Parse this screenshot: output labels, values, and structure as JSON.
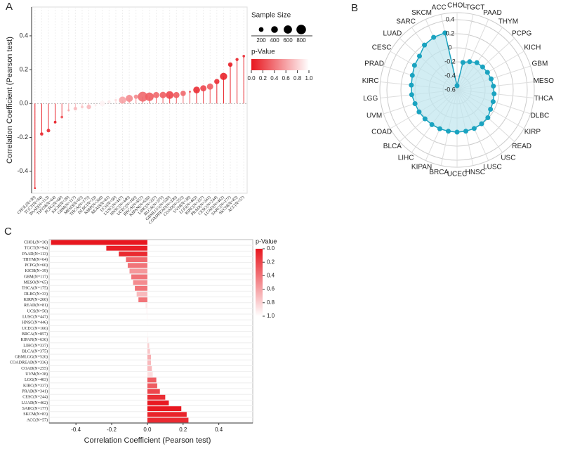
{
  "chart_data": [
    {
      "type": "lollipop",
      "panel": "A",
      "ylabel": "Correlation Coefficient (Pearson test)",
      "categories": [
        "CHOL(N=30)",
        "TGCT(N=94)",
        "PAAD(N=113)",
        "THYM(N=64)",
        "PCPG(N=60)",
        "KICH(N=39)",
        "GBM(N=117)",
        "MESO(N=65)",
        "THCA(N=175)",
        "DLBC(N=33)",
        "KIRP(N=260)",
        "READ(N=81)",
        "UCS(N=50)",
        "LUSC(N=447)",
        "HNSC(N=446)",
        "UCEC(N=166)",
        "BRCA(N=857)",
        "KIPAN(N=636)",
        "LIHC(N=337)",
        "BLCA(N=375)",
        "GBMLGG(N=520)",
        "COADREAD(N=336)",
        "COAD(N=255)",
        "UVM(N=38)",
        "LGG(N=403)",
        "KIRC(N=337)",
        "PRAD(N=341)",
        "CESC(N=244)",
        "LUAD(N=462)",
        "SARC(N=177)",
        "SKCM(N=83)",
        "ACC(N=57)"
      ],
      "values": [
        -0.5,
        -0.18,
        -0.16,
        -0.11,
        -0.08,
        -0.04,
        -0.03,
        -0.02,
        -0.02,
        -0.01,
        0,
        0.01,
        0.02,
        0.02,
        0.03,
        0.04,
        0.04,
        0.04,
        0.05,
        0.05,
        0.05,
        0.05,
        0.06,
        0.07,
        0.08,
        0.09,
        0.1,
        0.13,
        0.16,
        0.23,
        0.26,
        0.28
      ],
      "pvalues": [
        0.01,
        0.05,
        0.1,
        0.02,
        0.25,
        0.6,
        0.7,
        0.75,
        0.7,
        0.9,
        0.95,
        0.9,
        0.85,
        0.6,
        0.5,
        0.5,
        0.35,
        0.3,
        0.35,
        0.3,
        0.2,
        0.3,
        0.35,
        0.25,
        0.1,
        0.2,
        0.3,
        0.1,
        0.05,
        0.02,
        0.05,
        0.1
      ],
      "sizes": [
        30,
        94,
        113,
        64,
        60,
        39,
        117,
        65,
        175,
        33,
        260,
        81,
        50,
        447,
        446,
        166,
        857,
        636,
        337,
        375,
        520,
        336,
        255,
        38,
        403,
        337,
        341,
        244,
        462,
        177,
        83,
        57
      ],
      "ylim": [
        -0.53,
        0.57
      ],
      "yticks": [
        -0.4,
        -0.2,
        {
          "value": 0,
          "label": "0.0"
        },
        0.2,
        0.4
      ],
      "size_title": "Sample Size",
      "size_ticks": [
        200,
        400,
        600,
        800
      ],
      "p_title": "p-Value",
      "plim": [
        0,
        1
      ],
      "pticks": [
        {
          "value": 0,
          "label": "0.0"
        },
        0.2,
        0.4,
        0.6,
        0.8,
        {
          "value": 1,
          "label": "1.0"
        }
      ],
      "colorscale": [
        "#e8171f",
        "#ffffff"
      ]
    },
    {
      "type": "radar",
      "panel": "B",
      "categories": [
        "CHOL",
        "TGCT",
        "PAAD",
        "THYM",
        "PCPG",
        "KICH",
        "GBM",
        "MESO",
        "THCA",
        "DLBC",
        "KIRP",
        "READ",
        "USC",
        "LUSC",
        "HNSC",
        "UCEC",
        "BRCA",
        "KIPAN",
        "LIHC",
        "BLCA",
        "COAD",
        "UVM",
        "LGG",
        "KIRC",
        "PRAD",
        "CESC",
        "LUAD",
        "SARC",
        "SKCM",
        "ACC"
      ],
      "values": [
        -0.54,
        -0.2,
        -0.16,
        -0.12,
        -0.11,
        -0.1,
        -0.09,
        -0.08,
        -0.07,
        -0.06,
        -0.05,
        -0.01,
        -0.005,
        0,
        0,
        0,
        0,
        0.005,
        0.01,
        0.015,
        0.025,
        0.03,
        0.05,
        0.055,
        0.07,
        0.1,
        0.12,
        0.19,
        0.22,
        0.23
      ],
      "rlim": [
        -0.6,
        0.4
      ],
      "rticks": [
        -0.6,
        -0.4,
        -0.2,
        0,
        0.2,
        0.4
      ],
      "color": "#1aa3c0",
      "fill": "#bfe6ee"
    },
    {
      "type": "hbar",
      "panel": "C",
      "xlabel": "Correlation Coefficient (Pearson test)",
      "categories": [
        "CHOL(N=30)",
        "TGCT(N=94)",
        "PAAD(N=113)",
        "THYM(N=64)",
        "PCPG(N=60)",
        "KICH(N=39)",
        "GBM(N=117)",
        "MESO(N=65)",
        "THCA(N=175)",
        "DLBC(N=33)",
        "KIRP(N=260)",
        "READ(N=81)",
        "UCS(N=50)",
        "LUSC(N=447)",
        "HNSC(N=446)",
        "UCEC(N=166)",
        "BRCA(N=857)",
        "KIPAN(N=636)",
        "LIHC(N=337)",
        "BLCA(N=375)",
        "GBMLGG(N=520)",
        "COADREAD(N=336)",
        "COAD(N=255)",
        "UVM(N=38)",
        "LGG(N=403)",
        "KIRC(N=337)",
        "PRAD(N=341)",
        "CESC(N=244)",
        "LUAD(N=462)",
        "SARC(N=177)",
        "SKCM(N=83)",
        "ACC(N=57)"
      ],
      "values": [
        -0.54,
        -0.23,
        -0.16,
        -0.12,
        -0.11,
        -0.1,
        -0.09,
        -0.08,
        -0.07,
        -0.06,
        -0.05,
        -0.01,
        -0.005,
        -0.003,
        -0.002,
        0,
        0.002,
        0.005,
        0.01,
        0.015,
        0.02,
        0.02,
        0.025,
        0.03,
        0.05,
        0.055,
        0.07,
        0.1,
        0.12,
        0.19,
        0.22,
        0.23
      ],
      "pvalues": [
        0,
        0.03,
        0.08,
        0.35,
        0.4,
        0.55,
        0.4,
        0.5,
        0.4,
        0.7,
        0.4,
        0.9,
        0.95,
        0.95,
        0.97,
        1,
        0.95,
        0.9,
        0.8,
        0.75,
        0.65,
        0.7,
        0.7,
        0.85,
        0.3,
        0.3,
        0.2,
        0.1,
        0.01,
        0.01,
        0.05,
        0.08
      ],
      "xlim": [
        -0.55,
        0.59
      ],
      "xticks": [
        -0.4,
        -0.2,
        {
          "value": 0,
          "label": "0.0"
        },
        0.2,
        0.4
      ],
      "p_title": "p-Value",
      "plim": [
        0,
        1
      ],
      "pticks": [
        {
          "value": 0,
          "label": "0.0"
        },
        0.2,
        0.4,
        0.6,
        0.8,
        {
          "value": 1,
          "label": "1.0"
        }
      ],
      "colorscale": [
        "#e8171f",
        "#ffffff"
      ]
    }
  ]
}
